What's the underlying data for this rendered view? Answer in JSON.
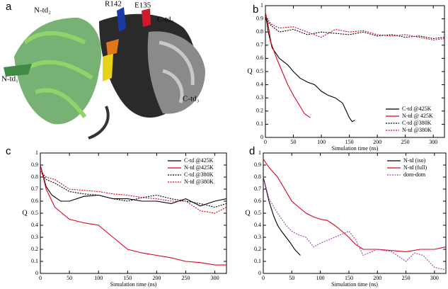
{
  "structure_image": {
    "panel_label": "a",
    "annotations": [
      "N-td₂",
      "R142",
      "E135",
      "C-td₄",
      "N-td₁",
      "C-td₃"
    ]
  },
  "chart_data": [
    {
      "type": "line",
      "panel_label": "b",
      "x_label": "Simulation time (ns)",
      "y_label": "Q",
      "xlim": [
        0,
        320
      ],
      "ylim": [
        0,
        1
      ],
      "xticks": [
        0,
        50,
        100,
        150,
        200,
        250,
        300
      ],
      "yticks": [
        0,
        0.1,
        0.2,
        0.3,
        0.4,
        0.5,
        0.6,
        0.7,
        0.8,
        0.9,
        1
      ],
      "legend": "lower right",
      "series": [
        {
          "name": "C-td @425K",
          "color": "#000000",
          "dash": "solid",
          "x": [
            0,
            5,
            12,
            25,
            40,
            50,
            62,
            75,
            88,
            100,
            112,
            125,
            138,
            150,
            155,
            160
          ],
          "values": [
            0.95,
            0.8,
            0.68,
            0.6,
            0.55,
            0.5,
            0.45,
            0.42,
            0.4,
            0.35,
            0.32,
            0.3,
            0.26,
            0.15,
            0.12,
            0.13
          ]
        },
        {
          "name": "N-td @ 425K",
          "color": "#e0001b",
          "dash": "solid",
          "x": [
            0,
            5,
            10,
            20,
            30,
            40,
            50,
            60,
            70,
            80
          ],
          "values": [
            0.95,
            0.85,
            0.72,
            0.6,
            0.5,
            0.4,
            0.32,
            0.25,
            0.18,
            0.15
          ]
        },
        {
          "name": "C-td @380K",
          "color": "#000000",
          "dash": "dotted",
          "x": [
            0,
            10,
            25,
            50,
            75,
            100,
            125,
            150,
            175,
            200,
            225,
            250,
            275,
            300,
            320
          ],
          "values": [
            0.9,
            0.85,
            0.8,
            0.82,
            0.78,
            0.8,
            0.79,
            0.78,
            0.8,
            0.77,
            0.78,
            0.76,
            0.77,
            0.75,
            0.76
          ]
        },
        {
          "name": "N-td @380K",
          "color": "#e0001b",
          "dash": "dotted",
          "x": [
            0,
            10,
            25,
            50,
            75,
            100,
            125,
            150,
            175,
            200,
            225,
            250,
            275,
            300,
            320
          ],
          "values": [
            0.92,
            0.86,
            0.83,
            0.84,
            0.8,
            0.76,
            0.82,
            0.8,
            0.81,
            0.78,
            0.77,
            0.78,
            0.76,
            0.74,
            0.75
          ]
        }
      ]
    },
    {
      "type": "line",
      "panel_label": "c",
      "x_label": "Simulation time (ns)",
      "y_label": "Q",
      "xlim": [
        0,
        320
      ],
      "ylim": [
        0,
        1
      ],
      "xticks": [
        0,
        50,
        100,
        150,
        200,
        250,
        300
      ],
      "yticks": [
        0,
        0.1,
        0.2,
        0.3,
        0.4,
        0.5,
        0.6,
        0.7,
        0.8,
        0.9,
        1
      ],
      "legend": "upper right",
      "series": [
        {
          "name": "C-td @425K",
          "color": "#000000",
          "dash": "solid",
          "x": [
            0,
            10,
            20,
            35,
            50,
            75,
            100,
            125,
            150,
            175,
            200,
            225,
            250,
            275,
            300,
            320
          ],
          "values": [
            0.9,
            0.72,
            0.65,
            0.6,
            0.6,
            0.64,
            0.65,
            0.62,
            0.62,
            0.6,
            0.6,
            0.58,
            0.62,
            0.56,
            0.6,
            0.62
          ]
        },
        {
          "name": "N-td @425K",
          "color": "#e0001b",
          "dash": "solid",
          "x": [
            0,
            10,
            25,
            50,
            75,
            100,
            125,
            150,
            175,
            200,
            225,
            250,
            275,
            300,
            320
          ],
          "values": [
            0.9,
            0.7,
            0.55,
            0.45,
            0.42,
            0.4,
            0.3,
            0.2,
            0.17,
            0.15,
            0.13,
            0.1,
            0.09,
            0.07,
            0.07
          ]
        },
        {
          "name": "C-td @380K",
          "color": "#000000",
          "dash": "dotted",
          "x": [
            0,
            10,
            25,
            50,
            75,
            100,
            125,
            150,
            175,
            200,
            225,
            250,
            275,
            300,
            320
          ],
          "values": [
            0.85,
            0.78,
            0.75,
            0.68,
            0.66,
            0.65,
            0.62,
            0.6,
            0.63,
            0.65,
            0.62,
            0.6,
            0.58,
            0.55,
            0.58
          ]
        },
        {
          "name": "N-td @380K",
          "color": "#e0001b",
          "dash": "dotted",
          "x": [
            0,
            10,
            25,
            50,
            75,
            100,
            125,
            150,
            175,
            200,
            225,
            250,
            275,
            300,
            320
          ],
          "values": [
            0.85,
            0.8,
            0.78,
            0.7,
            0.69,
            0.68,
            0.66,
            0.65,
            0.63,
            0.62,
            0.6,
            0.6,
            0.52,
            0.5,
            0.55
          ]
        }
      ]
    },
    {
      "type": "line",
      "panel_label": "d",
      "x_label": "Simulation time (ns)",
      "y_label": "Q",
      "xlim": [
        0,
        320
      ],
      "ylim": [
        0,
        1
      ],
      "xticks": [
        0,
        50,
        100,
        150,
        200,
        250,
        300
      ],
      "yticks": [
        0,
        0.1,
        0.2,
        0.3,
        0.4,
        0.5,
        0.6,
        0.7,
        0.8,
        0.9,
        1
      ],
      "legend": "upper right",
      "series": [
        {
          "name": "N-td (iso)",
          "color": "#000000",
          "dash": "solid",
          "x": [
            0,
            5,
            10,
            18,
            25,
            32,
            40,
            48,
            55,
            65
          ],
          "values": [
            0.8,
            0.7,
            0.6,
            0.48,
            0.4,
            0.35,
            0.3,
            0.25,
            0.2,
            0.15
          ]
        },
        {
          "name": "N-td (full)",
          "color": "#e0001b",
          "dash": "solid",
          "x": [
            0,
            10,
            25,
            40,
            50,
            62,
            75,
            88,
            100,
            112,
            125,
            138,
            150,
            162,
            175,
            200,
            225,
            250,
            275,
            300,
            320
          ],
          "values": [
            0.95,
            0.88,
            0.8,
            0.68,
            0.6,
            0.55,
            0.5,
            0.47,
            0.45,
            0.44,
            0.4,
            0.35,
            0.3,
            0.24,
            0.2,
            0.2,
            0.19,
            0.18,
            0.2,
            0.2,
            0.22
          ]
        },
        {
          "name": "dom-dom",
          "color": "#a040b0",
          "dash": "dotted",
          "x": [
            0,
            10,
            25,
            40,
            50,
            62,
            75,
            88,
            100,
            125,
            150,
            162,
            175,
            200,
            225,
            250,
            265,
            280,
            300,
            320
          ],
          "values": [
            0.8,
            0.62,
            0.5,
            0.4,
            0.35,
            0.32,
            0.3,
            0.22,
            0.25,
            0.3,
            0.35,
            0.28,
            0.15,
            0.2,
            0.18,
            0.1,
            0.17,
            0.15,
            0.05,
            0.03
          ]
        }
      ]
    }
  ]
}
